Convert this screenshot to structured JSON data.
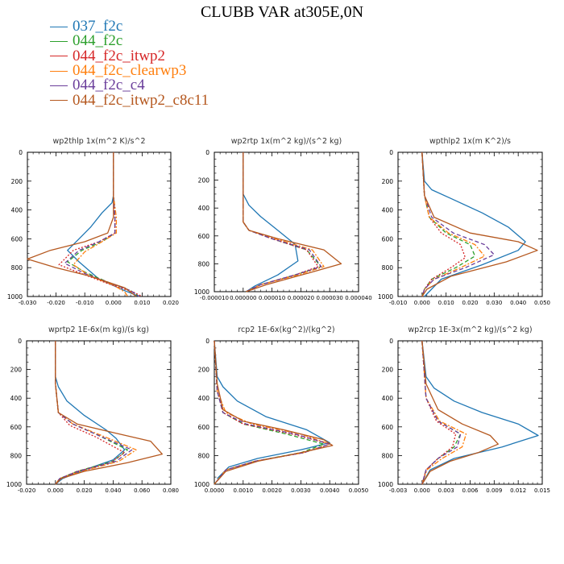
{
  "figure": {
    "title": "CLUBB VAR at305E,0N"
  },
  "legend": [
    {
      "name": "037_f2c",
      "color": "#1f77b4",
      "dash": "solid"
    },
    {
      "name": "044_f2c",
      "color": "#2ca02c",
      "dash": "dashed"
    },
    {
      "name": "044_f2c_itwp2",
      "color": "#d62728",
      "dash": "dotted"
    },
    {
      "name": "044_f2c_clearwp3",
      "color": "#ff7f0e",
      "dash": "dashdot"
    },
    {
      "name": "044_f2c_c4",
      "color": "#6a3d9a",
      "dash": "dashed"
    },
    {
      "name": "044_f2c_itwp2_c8c11",
      "color": "#b5581f",
      "dash": "solid"
    }
  ],
  "chart_data": [
    {
      "type": "line",
      "title": "wp2thlp  1x(m^2 K)/s^2",
      "xlim": [
        -0.03,
        0.02
      ],
      "ylim": [
        1000,
        0
      ],
      "xticks": [
        -0.03,
        -0.02,
        -0.01,
        0.0,
        0.01,
        0.02
      ],
      "xticklabels": [
        "-0.030",
        "-0.020",
        "-0.010",
        "0.000",
        "0.010",
        "0.020"
      ],
      "yticks": [
        0,
        200,
        400,
        600,
        800,
        1000
      ],
      "series": [
        {
          "x": [
            0,
            0,
            0,
            -0.0005,
            -0.004,
            -0.008,
            -0.012,
            -0.016,
            -0.012,
            -0.005,
            0.004,
            0.009
          ],
          "y": [
            0,
            200,
            300,
            350,
            420,
            520,
            600,
            680,
            760,
            880,
            960,
            1000
          ]
        },
        {
          "x": [
            0,
            0,
            0.0005,
            0.0005,
            -0.004,
            -0.011,
            -0.016,
            -0.01,
            -0.002,
            0.006,
            0.009
          ],
          "y": [
            0,
            300,
            450,
            560,
            620,
            680,
            760,
            830,
            900,
            960,
            1000
          ]
        },
        {
          "x": [
            0,
            0,
            0.0005,
            0.0005,
            -0.005,
            -0.014,
            -0.019,
            -0.01,
            -0.002,
            0.007,
            0.01
          ],
          "y": [
            0,
            300,
            450,
            560,
            620,
            680,
            780,
            850,
            910,
            970,
            1000
          ]
        },
        {
          "x": [
            0,
            0,
            0.001,
            0.001,
            -0.004,
            -0.01,
            -0.014,
            -0.008,
            0.0,
            0.004,
            0.005
          ],
          "y": [
            0,
            300,
            450,
            560,
            620,
            690,
            780,
            860,
            920,
            970,
            1000
          ]
        },
        {
          "x": [
            0,
            0,
            0.0005,
            0.0005,
            -0.005,
            -0.012,
            -0.017,
            -0.01,
            -0.002,
            0.006,
            0.009
          ],
          "y": [
            0,
            300,
            450,
            560,
            620,
            680,
            770,
            840,
            900,
            960,
            1000
          ]
        },
        {
          "x": [
            0,
            0,
            0,
            -0.002,
            -0.01,
            -0.022,
            -0.03,
            -0.02,
            -0.008,
            0.004,
            0.008
          ],
          "y": [
            0,
            300,
            450,
            560,
            620,
            680,
            740,
            800,
            860,
            940,
            1000
          ]
        }
      ]
    },
    {
      "type": "line",
      "title": "wp2rtp  1x(m^2 kg)/(s^2 kg)",
      "xlim": [
        -1e-05,
        4e-05
      ],
      "ylim": [
        1000,
        0
      ],
      "xticks": [
        -1e-05,
        0.0,
        1e-05,
        2e-05,
        3e-05,
        4e-05
      ],
      "xticklabels": [
        "-0.000010",
        "0.000000",
        "0.000010",
        "0.000020",
        "0.000030",
        "0.000040"
      ],
      "yticks": [
        0,
        200,
        400,
        600,
        800,
        1000
      ],
      "series": [
        {
          "x": [
            0,
            0,
            0,
            2e-06,
            6e-06,
            1.2e-05,
            1.8e-05,
            1.9e-05,
            1.2e-05,
            4e-06,
            1e-06
          ],
          "y": [
            0,
            200,
            300,
            380,
            460,
            560,
            660,
            780,
            880,
            960,
            1000
          ]
        },
        {
          "x": [
            0,
            0,
            0,
            2e-06,
            1e-05,
            2.2e-05,
            2.7e-05,
            1.8e-05,
            6e-06,
            1e-06
          ],
          "y": [
            0,
            300,
            500,
            560,
            620,
            700,
            820,
            880,
            950,
            1000
          ]
        },
        {
          "x": [
            0,
            0,
            0,
            2e-06,
            1e-05,
            2.2e-05,
            2.6e-05,
            1.8e-05,
            6e-06,
            1e-06
          ],
          "y": [
            0,
            300,
            500,
            560,
            620,
            700,
            820,
            880,
            950,
            1000
          ]
        },
        {
          "x": [
            0,
            0,
            0,
            2e-06,
            1.1e-05,
            2.4e-05,
            2.8e-05,
            1.9e-05,
            6e-06,
            1e-06
          ],
          "y": [
            0,
            300,
            500,
            560,
            620,
            700,
            820,
            880,
            950,
            1000
          ]
        },
        {
          "x": [
            0,
            0,
            0,
            2e-06,
            1e-05,
            2.3e-05,
            2.7e-05,
            1.8e-05,
            6e-06,
            1e-06
          ],
          "y": [
            0,
            300,
            500,
            560,
            620,
            700,
            820,
            880,
            950,
            1000
          ]
        },
        {
          "x": [
            0,
            0,
            0,
            2e-06,
            1.2e-05,
            2.8e-05,
            3.4e-05,
            2.2e-05,
            8e-06,
            1e-06
          ],
          "y": [
            0,
            300,
            500,
            560,
            620,
            700,
            800,
            870,
            950,
            1000
          ]
        }
      ]
    },
    {
      "type": "line",
      "title": "wpthlp2  1x(m K^2)/s",
      "xlim": [
        -0.01,
        0.05
      ],
      "ylim": [
        1000,
        0
      ],
      "xticks": [
        -0.01,
        0.0,
        0.01,
        0.02,
        0.03,
        0.04,
        0.05
      ],
      "xticklabels": [
        "-0.010",
        "0.000",
        "0.010",
        "0.020",
        "0.030",
        "0.040",
        "0.050"
      ],
      "yticks": [
        0,
        200,
        400,
        600,
        800,
        1000
      ],
      "series": [
        {
          "x": [
            0,
            0.001,
            0.004,
            0.012,
            0.025,
            0.036,
            0.043,
            0.04,
            0.025,
            0.008,
            0.001
          ],
          "y": [
            0,
            200,
            260,
            320,
            420,
            520,
            620,
            680,
            780,
            880,
            1000
          ]
        },
        {
          "x": [
            0,
            0.001,
            0.003,
            0.01,
            0.02,
            0.022,
            0.014,
            0.004,
            0.001,
            0
          ],
          "y": [
            0,
            300,
            450,
            560,
            640,
            720,
            800,
            880,
            950,
            1000
          ]
        },
        {
          "x": [
            0,
            0.001,
            0.003,
            0.008,
            0.016,
            0.018,
            0.012,
            0.004,
            0.001,
            0
          ],
          "y": [
            0,
            300,
            450,
            560,
            640,
            730,
            800,
            880,
            950,
            1000
          ]
        },
        {
          "x": [
            0,
            0.001,
            0.003,
            0.011,
            0.022,
            0.026,
            0.016,
            0.005,
            0.001,
            0
          ],
          "y": [
            0,
            300,
            450,
            560,
            640,
            720,
            800,
            880,
            950,
            1000
          ]
        },
        {
          "x": [
            0,
            0.001,
            0.004,
            0.013,
            0.026,
            0.03,
            0.018,
            0.005,
            0.001,
            0
          ],
          "y": [
            0,
            300,
            450,
            560,
            640,
            710,
            800,
            880,
            950,
            1000
          ]
        },
        {
          "x": [
            0,
            0.001,
            0.005,
            0.02,
            0.04,
            0.048,
            0.035,
            0.012,
            0.002,
            0
          ],
          "y": [
            0,
            300,
            450,
            560,
            620,
            680,
            760,
            860,
            950,
            1000
          ]
        }
      ]
    },
    {
      "type": "line",
      "title": "wprtp2  1E-6x(m kg)/(s kg)",
      "xlim": [
        -0.02,
        0.08
      ],
      "ylim": [
        1000,
        0
      ],
      "xticks": [
        -0.02,
        0.0,
        0.02,
        0.04,
        0.06,
        0.08
      ],
      "xticklabels": [
        "-0.020",
        "0.000",
        "0.020",
        "0.040",
        "0.060",
        "0.080"
      ],
      "yticks": [
        0,
        200,
        400,
        600,
        800,
        1000
      ],
      "series": [
        {
          "x": [
            0,
            0,
            0.002,
            0.008,
            0.02,
            0.035,
            0.042,
            0.048,
            0.04,
            0.02,
            0.005,
            0
          ],
          "y": [
            0,
            250,
            320,
            420,
            520,
            620,
            680,
            760,
            830,
            900,
            960,
            1000
          ]
        },
        {
          "x": [
            0,
            0,
            0.002,
            0.012,
            0.03,
            0.05,
            0.04,
            0.015,
            0.003,
            0
          ],
          "y": [
            0,
            300,
            500,
            580,
            660,
            760,
            840,
            910,
            960,
            1000
          ]
        },
        {
          "x": [
            0,
            0,
            0.002,
            0.01,
            0.028,
            0.048,
            0.038,
            0.015,
            0.003,
            0
          ],
          "y": [
            0,
            300,
            500,
            590,
            670,
            780,
            850,
            910,
            960,
            1000
          ]
        },
        {
          "x": [
            0,
            0,
            0.002,
            0.012,
            0.032,
            0.056,
            0.044,
            0.018,
            0.003,
            0
          ],
          "y": [
            0,
            300,
            500,
            580,
            660,
            760,
            840,
            910,
            960,
            1000
          ]
        },
        {
          "x": [
            0,
            0,
            0.002,
            0.012,
            0.03,
            0.053,
            0.042,
            0.016,
            0.003,
            0
          ],
          "y": [
            0,
            300,
            500,
            580,
            660,
            760,
            840,
            910,
            960,
            1000
          ]
        },
        {
          "x": [
            0,
            0,
            0.002,
            0.015,
            0.04,
            0.066,
            0.074,
            0.05,
            0.02,
            0.004,
            0
          ],
          "y": [
            0,
            300,
            500,
            580,
            640,
            700,
            790,
            850,
            910,
            960,
            1000
          ]
        }
      ]
    },
    {
      "type": "line",
      "title": "rcp2  1E-6x(kg^2)/(kg^2)",
      "xlim": [
        0.0,
        0.005
      ],
      "ylim": [
        1000,
        0
      ],
      "xticks": [
        0.0,
        0.001,
        0.002,
        0.003,
        0.004,
        0.005
      ],
      "xticklabels": [
        "0.0000",
        "0.0010",
        "0.0020",
        "0.0030",
        "0.0040",
        "0.0050"
      ],
      "yticks": [
        0,
        200,
        400,
        600,
        800,
        1000
      ],
      "series": [
        {
          "x": [
            0,
            0.0001,
            0.0003,
            0.0008,
            0.0018,
            0.0032,
            0.004,
            0.003,
            0.0015,
            0.0005,
            0.0001
          ],
          "y": [
            0,
            250,
            320,
            420,
            530,
            620,
            710,
            760,
            820,
            880,
            960
          ]
        },
        {
          "x": [
            0,
            0.0001,
            0.0003,
            0.001,
            0.0025,
            0.0038,
            0.003,
            0.0014,
            0.0004,
            0
          ],
          "y": [
            0,
            350,
            500,
            580,
            650,
            720,
            780,
            840,
            900,
            1000
          ]
        },
        {
          "x": [
            0,
            0.0001,
            0.0003,
            0.001,
            0.0027,
            0.004,
            0.0031,
            0.0014,
            0.0004,
            0
          ],
          "y": [
            0,
            350,
            500,
            580,
            650,
            720,
            780,
            840,
            900,
            1000
          ]
        },
        {
          "x": [
            0,
            0.0001,
            0.0004,
            0.0013,
            0.003,
            0.004,
            0.0031,
            0.0014,
            0.0004,
            0
          ],
          "y": [
            0,
            350,
            500,
            580,
            650,
            720,
            780,
            840,
            900,
            1000
          ]
        },
        {
          "x": [
            0,
            0.0001,
            0.0003,
            0.0011,
            0.0028,
            0.004,
            0.0031,
            0.0014,
            0.0004,
            0
          ],
          "y": [
            0,
            350,
            500,
            580,
            650,
            720,
            780,
            840,
            900,
            1000
          ]
        },
        {
          "x": [
            0,
            0.0001,
            0.0003,
            0.001,
            0.0024,
            0.0038,
            0.0041,
            0.003,
            0.0015,
            0.0004,
            0
          ],
          "y": [
            0,
            300,
            480,
            560,
            620,
            690,
            730,
            780,
            840,
            910,
            1000
          ]
        }
      ]
    },
    {
      "type": "line",
      "title": "wp2rcp  1E-3x(m^2 kg)/(s^2 kg)",
      "xlim": [
        -0.003,
        0.015
      ],
      "ylim": [
        1000,
        0
      ],
      "xticks": [
        -0.003,
        0.0,
        0.003,
        0.006,
        0.009,
        0.012,
        0.015
      ],
      "xticklabels": [
        "-0.003",
        "0.000",
        "0.003",
        "0.006",
        "0.009",
        "0.012",
        "0.015"
      ],
      "yticks": [
        0,
        200,
        400,
        600,
        800,
        1000
      ],
      "series": [
        {
          "x": [
            0,
            0.0005,
            0.0015,
            0.004,
            0.0075,
            0.012,
            0.0145,
            0.01,
            0.004,
            0.001,
            0
          ],
          "y": [
            0,
            250,
            330,
            420,
            500,
            580,
            660,
            740,
            820,
            900,
            1000
          ]
        },
        {
          "x": [
            0,
            0.0005,
            0.002,
            0.0048,
            0.004,
            0.002,
            0.0005,
            0
          ],
          "y": [
            0,
            400,
            560,
            650,
            740,
            820,
            900,
            1000
          ]
        },
        {
          "x": [
            0,
            0.0005,
            0.0018,
            0.0042,
            0.0038,
            0.002,
            0.0005,
            0
          ],
          "y": [
            0,
            400,
            560,
            650,
            740,
            820,
            900,
            1000
          ]
        },
        {
          "x": [
            0,
            0.0005,
            0.0022,
            0.0055,
            0.005,
            0.0025,
            0.0006,
            0
          ],
          "y": [
            0,
            400,
            560,
            650,
            740,
            820,
            900,
            1000
          ]
        },
        {
          "x": [
            0,
            0.0005,
            0.002,
            0.0048,
            0.0044,
            0.002,
            0.0005,
            0
          ],
          "y": [
            0,
            400,
            560,
            650,
            740,
            820,
            900,
            1000
          ]
        },
        {
          "x": [
            0,
            0.0005,
            0.002,
            0.005,
            0.0085,
            0.0095,
            0.007,
            0.0035,
            0.001,
            0
          ],
          "y": [
            0,
            300,
            480,
            580,
            660,
            720,
            780,
            840,
            910,
            1000
          ]
        }
      ]
    }
  ]
}
